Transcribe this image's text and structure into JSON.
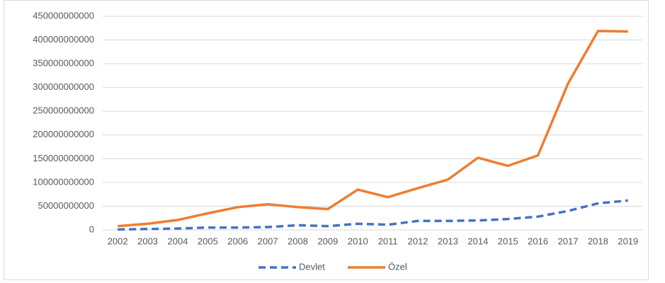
{
  "chart_data": {
    "type": "line",
    "categories": [
      "2002",
      "2003",
      "2004",
      "2005",
      "2006",
      "2007",
      "2008",
      "2009",
      "2010",
      "2011",
      "2012",
      "2013",
      "2014",
      "2015",
      "2016",
      "2017",
      "2018",
      "2019"
    ],
    "series": [
      {
        "name": "Devlet",
        "color": "#4472c4",
        "dashed": true,
        "values": [
          1000000000,
          2000000000,
          3000000000,
          5000000000,
          5000000000,
          6000000000,
          10000000000,
          8000000000,
          13000000000,
          11000000000,
          19000000000,
          19000000000,
          20000000000,
          23000000000,
          28000000000,
          40000000000,
          56000000000,
          62000000000
        ]
      },
      {
        "name": "Özel",
        "color": "#ed7d31",
        "dashed": false,
        "values": [
          8000000000,
          13000000000,
          21000000000,
          35000000000,
          48000000000,
          54000000000,
          48000000000,
          44000000000,
          85000000000,
          69000000000,
          88000000000,
          106000000000,
          152000000000,
          135000000000,
          157000000000,
          308000000000,
          419000000000,
          418000000000
        ]
      }
    ],
    "ylim": [
      0,
      450000000000
    ],
    "yticks": [
      0,
      50000000000,
      100000000000,
      150000000000,
      200000000000,
      250000000000,
      300000000000,
      350000000000,
      400000000000,
      450000000000
    ],
    "grid": true,
    "legend": "bottom"
  }
}
